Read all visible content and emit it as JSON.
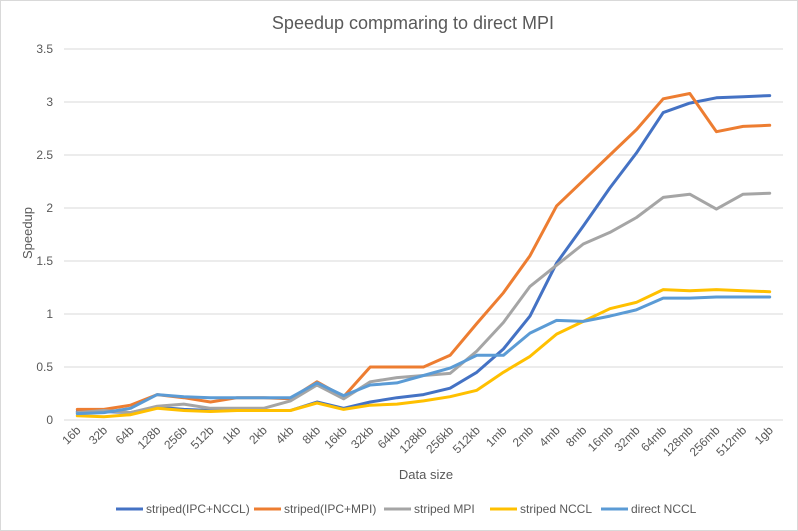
{
  "chart_data": {
    "type": "line",
    "title": "Speedup compmaring to direct MPI",
    "xlabel": "Data size",
    "ylabel": "Speedup",
    "ylim": [
      0,
      3.5
    ],
    "yticks": [
      0,
      0.5,
      1,
      1.5,
      2,
      2.5,
      3,
      3.5
    ],
    "ytick_labels": [
      "0",
      "0.5",
      "1",
      "1.5",
      "2",
      "2.5",
      "3",
      "3.5"
    ],
    "grid": "horizontal",
    "legend": "bottom",
    "categories": [
      "16b",
      "32b",
      "64b",
      "128b",
      "256b",
      "512b",
      "1kb",
      "2kb",
      "4kb",
      "8kb",
      "16kb",
      "32kb",
      "64kb",
      "128kb",
      "256kb",
      "512kb",
      "1mb",
      "2mb",
      "4mb",
      "8mb",
      "16mb",
      "32mb",
      "64mb",
      "128mb",
      "256mb",
      "512mb",
      "1gb"
    ],
    "series": [
      {
        "name": "striped(IPC+NCCL)",
        "color": "#4472c4",
        "values": [
          0.08,
          0.08,
          0.07,
          0.12,
          0.1,
          0.09,
          0.09,
          0.09,
          0.09,
          0.17,
          0.11,
          0.17,
          0.21,
          0.24,
          0.3,
          0.45,
          0.67,
          0.98,
          1.48,
          1.83,
          2.19,
          2.52,
          2.9,
          2.99,
          3.04,
          3.05,
          3.06
        ]
      },
      {
        "name": "striped(IPC+MPI)",
        "color": "#ed7d31",
        "values": [
          0.1,
          0.1,
          0.14,
          0.24,
          0.21,
          0.17,
          0.21,
          0.21,
          0.2,
          0.36,
          0.22,
          0.5,
          0.5,
          0.5,
          0.61,
          0.91,
          1.2,
          1.55,
          2.02,
          2.26,
          2.5,
          2.74,
          3.03,
          3.08,
          2.72,
          2.77,
          2.78
        ]
      },
      {
        "name": "striped MPI",
        "color": "#a5a5a5",
        "values": [
          0.07,
          0.09,
          0.07,
          0.13,
          0.15,
          0.11,
          0.11,
          0.11,
          0.18,
          0.33,
          0.2,
          0.36,
          0.4,
          0.42,
          0.44,
          0.65,
          0.92,
          1.26,
          1.46,
          1.66,
          1.77,
          1.91,
          2.1,
          2.13,
          1.99,
          2.13,
          2.14
        ]
      },
      {
        "name": "striped NCCL",
        "color": "#ffc000",
        "values": [
          0.04,
          0.03,
          0.05,
          0.11,
          0.09,
          0.08,
          0.09,
          0.09,
          0.09,
          0.16,
          0.1,
          0.14,
          0.15,
          0.18,
          0.22,
          0.28,
          0.45,
          0.6,
          0.81,
          0.93,
          1.05,
          1.11,
          1.23,
          1.22,
          1.23,
          1.22,
          1.21
        ]
      },
      {
        "name": "direct NCCL",
        "color": "#5b9bd5",
        "values": [
          0.06,
          0.07,
          0.11,
          0.24,
          0.22,
          0.21,
          0.21,
          0.21,
          0.21,
          0.35,
          0.23,
          0.33,
          0.35,
          0.42,
          0.49,
          0.61,
          0.61,
          0.82,
          0.94,
          0.93,
          0.98,
          1.04,
          1.15,
          1.15,
          1.16,
          1.16,
          1.16
        ]
      }
    ]
  }
}
